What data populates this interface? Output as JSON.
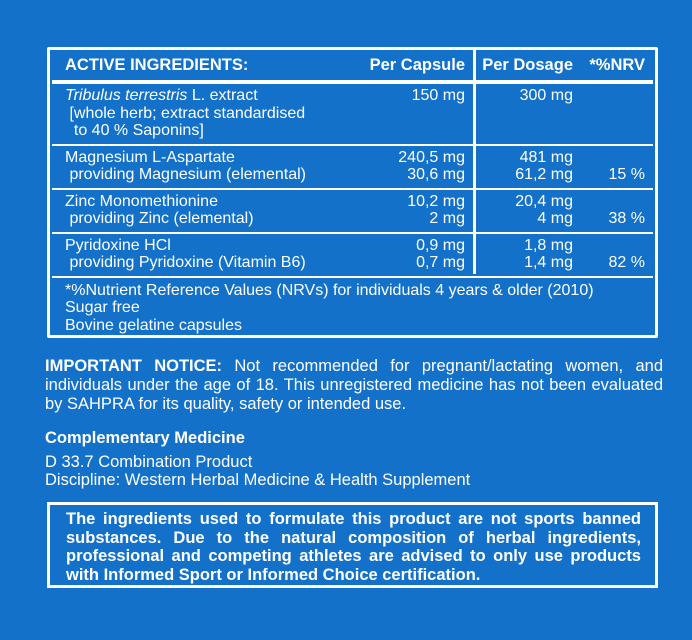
{
  "colors": {
    "background": "#1371c9",
    "border": "#ffffff",
    "text": "#ffffff"
  },
  "table": {
    "header": {
      "col1": "ACTIVE INGREDIENTS:",
      "col2": "Per Capsule",
      "col3": "Per Dosage",
      "col4": "*%NRV"
    },
    "rows": [
      {
        "name_lines": [
          {
            "italic": "Tribulus terrestris",
            "text": " L. extract"
          },
          " [whole herb; extract standardised",
          "  to 40 % Saponins]"
        ],
        "capsule": [
          "150 mg"
        ],
        "dosage": [
          "300 mg"
        ],
        "nrv": []
      },
      {
        "name_lines": [
          "Magnesium L-Aspartate",
          " providing Magnesium (elemental)"
        ],
        "capsule": [
          "240,5 mg",
          "30,6 mg"
        ],
        "dosage": [
          "481 mg",
          "61,2 mg"
        ],
        "nrv": [
          "",
          "15 %"
        ]
      },
      {
        "name_lines": [
          "Zinc Monomethionine",
          " providing Zinc (elemental)"
        ],
        "capsule": [
          "10,2 mg",
          "2 mg"
        ],
        "dosage": [
          "20,4 mg",
          "4 mg"
        ],
        "nrv": [
          "",
          "38 %"
        ]
      },
      {
        "name_lines": [
          "Pyridoxine HCl",
          " providing Pyridoxine (Vitamin B6)"
        ],
        "capsule": [
          "0,9 mg",
          "0,7 mg"
        ],
        "dosage": [
          "1,8 mg",
          "1,4 mg"
        ],
        "nrv": [
          "",
          "82 %"
        ]
      }
    ],
    "footnotes": [
      "*%Nutrient Reference Values (NRVs) for individuals 4 years & older (2010)",
      "Sugar free",
      "Bovine gelatine capsules"
    ]
  },
  "notice": {
    "label": "IMPORTANT NOTICE:",
    "text": "Not recommended for pregnant/lactating women, and individuals under the age of 18. This unregistered medicine has not been evaluated by SAHPRA for its quality, safety or intended use."
  },
  "classification": {
    "heading": "Complementary Medicine",
    "lines": [
      "D 33.7 Combination Product",
      "Discipline: Western Herbal Medicine & Health Supplement"
    ]
  },
  "sports_box": {
    "text": "The ingredients used to formulate this product are not sports banned substances. Due to the natural composition of herbal ingredients, professional and competing athletes are advised to only use products with Informed Sport or Informed Choice certification."
  }
}
